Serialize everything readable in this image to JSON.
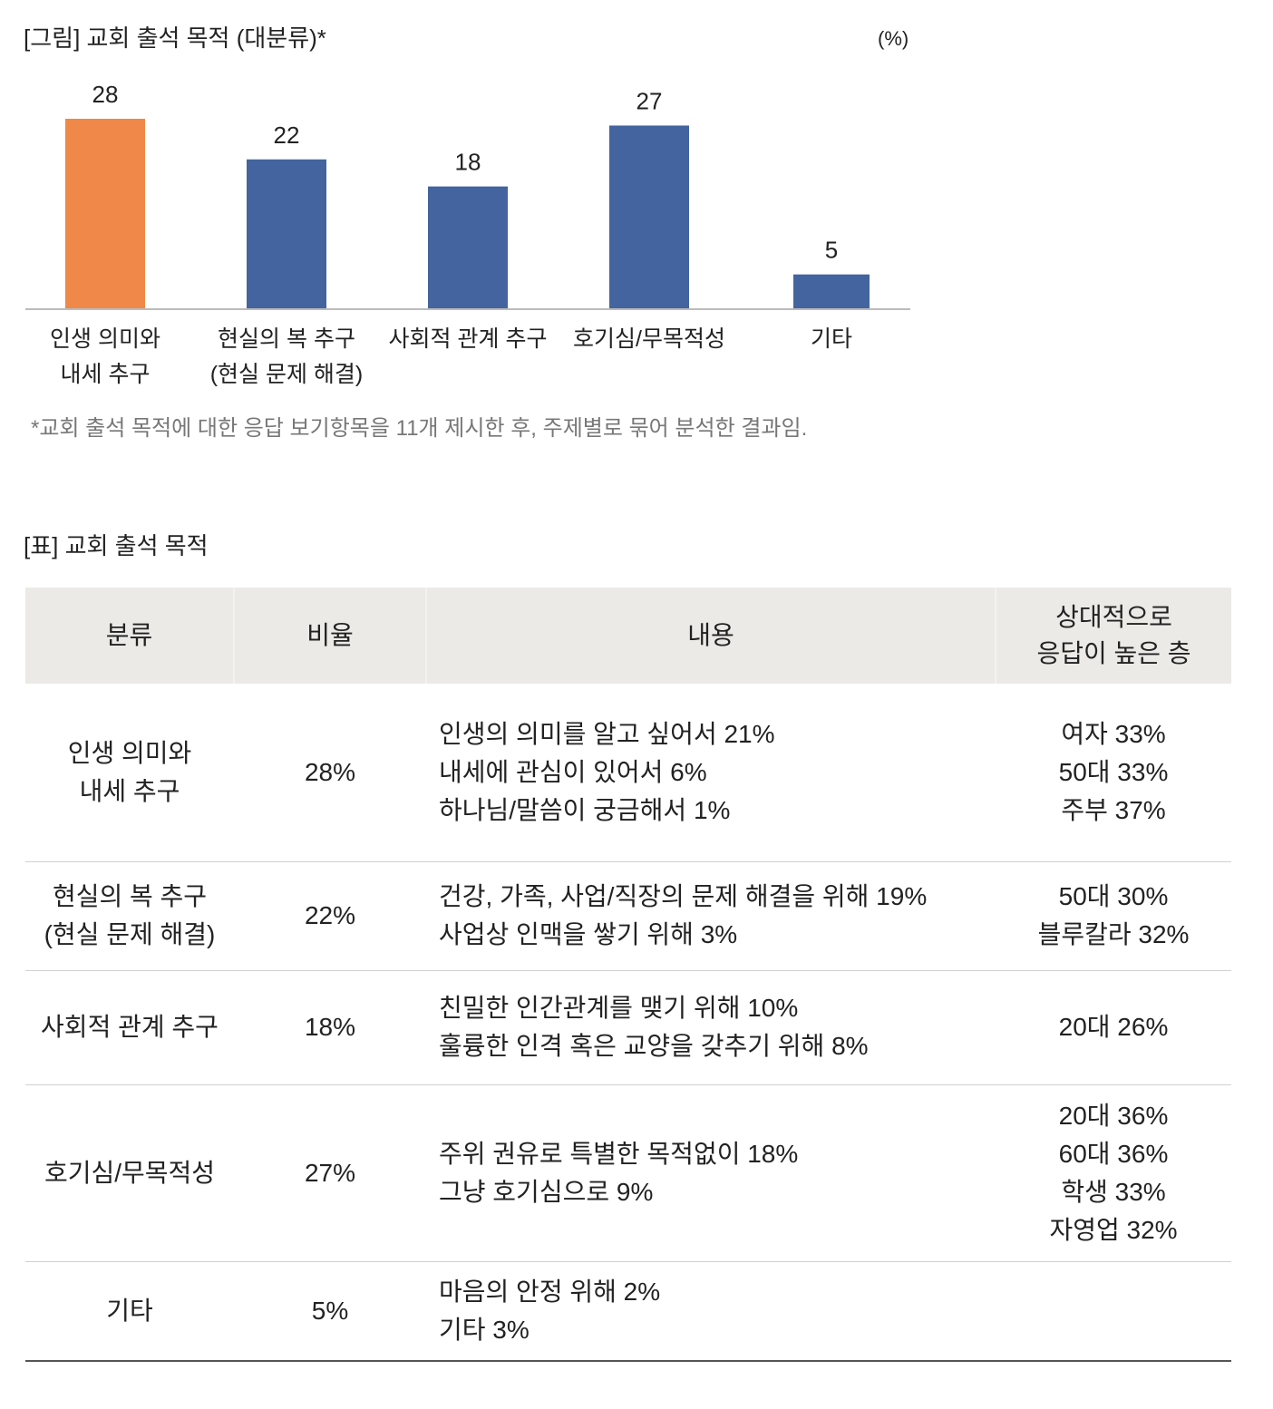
{
  "figure": {
    "title": "[그림] 교회 출석 목적 (대분류)*",
    "unit": "(%)",
    "footnote": "*교회 출석 목적에 대한 응답 보기항목을 11개 제시한 후, 주제별로 묶어 분석한 결과임."
  },
  "chart_data": {
    "type": "bar",
    "title": "[그림] 교회 출석 목적 (대분류)*",
    "ylabel": "(%)",
    "xlabel": "",
    "categories": [
      [
        "인생 의미와",
        "내세 추구"
      ],
      [
        "현실의 복 추구",
        "(현실 문제 해결)"
      ],
      [
        "사회적 관계 추구"
      ],
      [
        "호기심/무목적성"
      ],
      [
        "기타"
      ]
    ],
    "values": [
      28,
      22,
      18,
      27,
      5
    ],
    "colors": [
      "#f0884a",
      "#43649e",
      "#43649e",
      "#43649e",
      "#43649e"
    ],
    "ylim": [
      0,
      28
    ],
    "grid": false
  },
  "table": {
    "title": "[표] 교회 출석 목적",
    "headers": [
      "분류",
      "비율",
      "내용",
      [
        "상대적으로",
        "응답이 높은 층"
      ]
    ],
    "rows": [
      {
        "category": [
          "인생 의미와",
          "내세 추구"
        ],
        "ratio": "28%",
        "content": [
          "인생의 의미를 알고 싶어서 21%",
          "내세에 관심이 있어서 6%",
          "하나님/말씀이 궁금해서 1%"
        ],
        "groups": [
          "여자 33%",
          "50대 33%",
          "주부 37%"
        ]
      },
      {
        "category": [
          "현실의 복 추구",
          "(현실 문제 해결)"
        ],
        "ratio": "22%",
        "content": [
          "건강, 가족, 사업/직장의 문제 해결을 위해 19%",
          "사업상 인맥을 쌓기 위해 3%"
        ],
        "groups": [
          "50대 30%",
          "블루칼라 32%"
        ]
      },
      {
        "category": [
          "사회적 관계 추구"
        ],
        "ratio": "18%",
        "content": [
          "친밀한 인간관계를 맺기 위해 10%",
          "훌륭한 인격 혹은 교양을 갖추기 위해 8%"
        ],
        "groups": [
          "20대 26%"
        ]
      },
      {
        "category": [
          "호기심/무목적성"
        ],
        "ratio": "27%",
        "content": [
          "주위 권유로 특별한 목적없이 18%",
          "그냥 호기심으로 9%"
        ],
        "groups": [
          "20대 36%",
          "60대 36%",
          "학생 33%",
          "자영업 32%"
        ]
      },
      {
        "category": [
          "기타"
        ],
        "ratio": "5%",
        "content": [
          "마음의 안정 위해 2%",
          "기타 3%"
        ],
        "groups": []
      }
    ]
  }
}
